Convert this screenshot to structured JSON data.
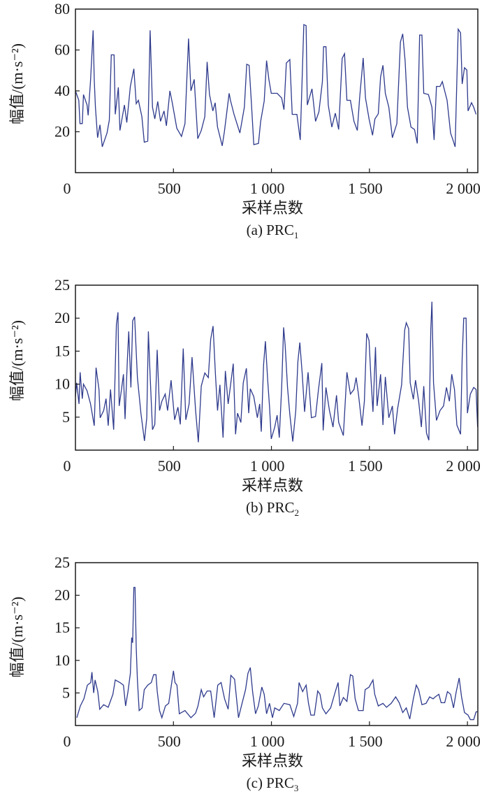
{
  "chart_data": [
    {
      "type": "line",
      "caption": "(a) PRC",
      "caption_sub": "1",
      "xlabel": "采样点数",
      "ylabel": "幅值/(m·s⁻²)",
      "xlim": [
        0,
        2053
      ],
      "ylim": [
        0,
        80
      ],
      "xticks": [
        0,
        500,
        1000,
        1500,
        2000
      ],
      "xtick_labels": [
        "0",
        "500",
        "1 000",
        "1 500",
        "2 000"
      ],
      "yticks": [
        20,
        40,
        60,
        80
      ],
      "ytick_labels": [
        "20",
        "40",
        "60",
        "80"
      ],
      "color": "#2e3a8c",
      "x": [
        0,
        17,
        23,
        35,
        41,
        59,
        65,
        77,
        90,
        96,
        102,
        113,
        125,
        137,
        161,
        173,
        183,
        197,
        203,
        219,
        227,
        250,
        262,
        280,
        298,
        310,
        321,
        339,
        351,
        369,
        381,
        393,
        405,
        420,
        434,
        452,
        464,
        482,
        494,
        517,
        541,
        559,
        577,
        589,
        606,
        624,
        642,
        660,
        672,
        684,
        701,
        713,
        725,
        749,
        760,
        784,
        791,
        809,
        839,
        862,
        874,
        886,
        898,
        910,
        934,
        945,
        963,
        975,
        987,
        999,
        1029,
        1052,
        1064,
        1076,
        1094,
        1106,
        1130,
        1147,
        1165,
        1177,
        1183,
        1207,
        1225,
        1242,
        1260,
        1266,
        1278,
        1290,
        1308,
        1326,
        1343,
        1361,
        1373,
        1385,
        1403,
        1421,
        1438,
        1450,
        1468,
        1480,
        1498,
        1516,
        1528,
        1545,
        1557,
        1569,
        1581,
        1599,
        1617,
        1640,
        1658,
        1670,
        1682,
        1694,
        1712,
        1730,
        1744,
        1756,
        1768,
        1777,
        1801,
        1819,
        1830,
        1842,
        1860,
        1872,
        1896,
        1914,
        1926,
        1937,
        1953,
        1965,
        1973,
        1985,
        1997,
        2003,
        2021,
        2032,
        2044
      ],
      "y": [
        40,
        35.4,
        24,
        24,
        38.2,
        33.1,
        28,
        45,
        69.6,
        45.6,
        32,
        17.1,
        23.4,
        12.6,
        19.4,
        25.7,
        57.6,
        57.6,
        28.5,
        41.7,
        20.6,
        33.1,
        24.5,
        42.2,
        50.8,
        33.7,
        35.4,
        27.4,
        14.9,
        15.4,
        69.6,
        32,
        26.3,
        34.8,
        25.1,
        30.2,
        22.9,
        40,
        34.2,
        21.7,
        17.7,
        24,
        65.6,
        40,
        45.6,
        16.6,
        20.6,
        27.4,
        54.2,
        38.2,
        30.2,
        34.2,
        22.3,
        13.1,
        20,
        38.8,
        35.4,
        28.5,
        19.4,
        32,
        53,
        52.5,
        34,
        13.7,
        14.3,
        25,
        35,
        54.8,
        45.6,
        38.8,
        38.8,
        36.5,
        30.8,
        53.6,
        55.3,
        28.5,
        28.5,
        16,
        72.4,
        71.9,
        33.1,
        41,
        25.1,
        29.7,
        44.5,
        61.6,
        61.6,
        33.1,
        22.3,
        29.1,
        21.1,
        55.9,
        58.2,
        35.4,
        35.4,
        25.1,
        20.6,
        36.5,
        56.1,
        36.5,
        26.3,
        18.3,
        26.3,
        28.8,
        46.8,
        52.5,
        38.8,
        32,
        17.1,
        24,
        63.9,
        67.9,
        54.8,
        32,
        22.3,
        21.1,
        14.3,
        67.3,
        67.3,
        38.8,
        38.2,
        32,
        16,
        42.2,
        42.2,
        44.5,
        35.4,
        19.4,
        16,
        12.6,
        70.2,
        68.4,
        43.4,
        51.3,
        50.2,
        30.2,
        34.2,
        32,
        28.5
      ]
    },
    {
      "type": "line",
      "caption": "(b) PRC",
      "caption_sub": "2",
      "xlabel": "采样点数",
      "ylabel": "幅值/(m·s⁻²)",
      "xlim": [
        0,
        2053
      ],
      "ylim": [
        0,
        25
      ],
      "xticks": [
        0,
        500,
        1000,
        1500,
        2000
      ],
      "xtick_labels": [
        "0",
        "500",
        "1 000",
        "1 500",
        "2 000"
      ],
      "yticks": [
        5,
        10,
        15,
        20,
        25
      ],
      "ytick_labels": [
        "5",
        "10",
        "15",
        "20",
        "25"
      ],
      "color": "#2e3a8c",
      "x": [
        0,
        6,
        18,
        24,
        35,
        41,
        59,
        77,
        96,
        105,
        120,
        126,
        144,
        156,
        167,
        179,
        195,
        209,
        217,
        223,
        235,
        245,
        253,
        265,
        272,
        283,
        292,
        302,
        316,
        334,
        352,
        364,
        372,
        381,
        393,
        405,
        417,
        429,
        441,
        458,
        470,
        488,
        506,
        523,
        535,
        550,
        563,
        580,
        595,
        613,
        627,
        642,
        660,
        678,
        690,
        702,
        714,
        725,
        737,
        753,
        765,
        779,
        805,
        817,
        827,
        844,
        856,
        872,
        884,
        892,
        910,
        928,
        940,
        948,
        960,
        969,
        981,
        991,
        999,
        1017,
        1029,
        1040,
        1052,
        1062,
        1070,
        1082,
        1094,
        1109,
        1124,
        1135,
        1145,
        1157,
        1169,
        1187,
        1204,
        1225,
        1240,
        1257,
        1264,
        1278,
        1296,
        1314,
        1332,
        1343,
        1367,
        1385,
        1403,
        1421,
        1432,
        1444,
        1462,
        1474,
        1486,
        1498,
        1507,
        1518,
        1531,
        1539,
        1557,
        1569,
        1581,
        1599,
        1617,
        1628,
        1644,
        1664,
        1680,
        1688,
        1700,
        1708,
        1724,
        1735,
        1751,
        1765,
        1777,
        1791,
        1803,
        1813,
        1819,
        1827,
        1842,
        1860,
        1878,
        1893,
        1908,
        1920,
        1934,
        1946,
        1965,
        1973,
        1981,
        1993,
        2000,
        2015,
        2032,
        2044,
        2052
      ],
      "y": [
        8.1,
        10.2,
        7,
        11.8,
        7.8,
        10,
        9,
        7,
        3.7,
        12.5,
        9.2,
        4.9,
        6,
        7.8,
        3.7,
        9.2,
        3.1,
        19,
        20.9,
        6.7,
        9.2,
        11.5,
        4.7,
        13.6,
        18,
        9.5,
        19.6,
        20.2,
        11,
        5.6,
        1.4,
        4.9,
        18,
        11.3,
        3.1,
        3.9,
        15.2,
        6,
        7.4,
        8.5,
        6,
        10.6,
        4.6,
        6.5,
        3.9,
        15.4,
        4.6,
        7,
        14.1,
        6,
        1.2,
        9.7,
        11.7,
        11,
        16.8,
        18.8,
        11.7,
        6,
        9.9,
        1.9,
        12,
        7,
        13.1,
        2.4,
        5.6,
        4.2,
        10.2,
        12.4,
        5.6,
        9.3,
        8.1,
        4.9,
        7,
        2.8,
        12.9,
        16.5,
        10.6,
        6.3,
        1.7,
        3.5,
        5.3,
        1.9,
        9.5,
        18.6,
        15.9,
        9.5,
        5.4,
        1.3,
        6,
        13.4,
        16.3,
        11.6,
        5.8,
        11.8,
        4.9,
        5.1,
        9.2,
        13.2,
        3,
        9.5,
        6,
        3.5,
        8.3,
        4.2,
        2.2,
        11.8,
        8.5,
        9.2,
        11,
        8.5,
        3.7,
        7.4,
        17.7,
        16.6,
        11.3,
        5.8,
        15.6,
        6.7,
        11.5,
        3.8,
        11.1,
        4.9,
        6.7,
        2.4,
        6.3,
        9.9,
        18.2,
        19.3,
        18.4,
        10.2,
        7.7,
        10.6,
        7.4,
        3.5,
        9.7,
        2.6,
        1.5,
        18.4,
        22.5,
        10.2,
        4.5,
        6,
        6.7,
        9.5,
        7.4,
        11.5,
        9.2,
        3.8,
        2.4,
        14,
        20,
        20,
        5.6,
        8.5,
        9.5,
        9.2,
        3.5
      ]
    },
    {
      "type": "line",
      "caption": "(c) PRC",
      "caption_sub": "3",
      "xlabel": "采样点数",
      "ylabel": "幅值/(m·s⁻²)",
      "xlim": [
        0,
        2053
      ],
      "ylim": [
        0,
        25
      ],
      "xticks": [
        0,
        500,
        1000,
        1500,
        2000
      ],
      "xtick_labels": [
        "0",
        "500",
        "1 000",
        "1 500",
        "2 000"
      ],
      "yticks": [
        5,
        10,
        15,
        20,
        25
      ],
      "ytick_labels": [
        "5",
        "10",
        "15",
        "20",
        "25"
      ],
      "color": "#2e3a8c",
      "x": [
        7,
        25,
        43,
        61,
        78,
        84,
        93,
        100,
        114,
        124,
        144,
        167,
        191,
        203,
        227,
        245,
        256,
        268,
        280,
        287,
        292,
        298,
        304,
        310,
        316,
        325,
        340,
        351,
        369,
        387,
        399,
        411,
        417,
        429,
        441,
        459,
        476,
        488,
        500,
        508,
        518,
        530,
        559,
        589,
        613,
        625,
        642,
        654,
        672,
        690,
        708,
        726,
        743,
        761,
        779,
        793,
        812,
        832,
        850,
        868,
        880,
        892,
        904,
        919,
        933,
        951,
        963,
        975,
        990,
        1005,
        1017,
        1040,
        1064,
        1094,
        1114,
        1133,
        1141,
        1159,
        1177,
        1189,
        1201,
        1219,
        1236,
        1248,
        1260,
        1278,
        1302,
        1326,
        1340,
        1349,
        1367,
        1385,
        1403,
        1415,
        1427,
        1444,
        1468,
        1478,
        1498,
        1518,
        1527,
        1545,
        1569,
        1587,
        1611,
        1634,
        1652,
        1670,
        1688,
        1706,
        1724,
        1739,
        1751,
        1768,
        1789,
        1807,
        1825,
        1836,
        1854,
        1866,
        1884,
        1898,
        1914,
        1929,
        1943,
        1958,
        1970,
        1985,
        2003,
        2015,
        2032,
        2044,
        2052
      ],
      "y": [
        1.2,
        3,
        4.1,
        6.2,
        6.6,
        8.2,
        5,
        7,
        5.2,
        2.5,
        3.2,
        2.8,
        4.8,
        7,
        6.6,
        6.2,
        3,
        5.2,
        8,
        13.5,
        12.7,
        21.2,
        21.2,
        12,
        7,
        2.3,
        2.7,
        5.5,
        6.2,
        6.6,
        7.8,
        7.8,
        5.3,
        2.3,
        1.2,
        3,
        3.4,
        5.9,
        8.4,
        6.6,
        6.2,
        1.8,
        2.3,
        1.2,
        1.9,
        3,
        5.5,
        4.4,
        5.3,
        5.3,
        1.2,
        6.2,
        6.6,
        4.1,
        2.5,
        7.7,
        7.1,
        1.2,
        3.4,
        5.5,
        8,
        8.9,
        5.2,
        1.8,
        3,
        5.9,
        4.8,
        1.8,
        3.4,
        1.2,
        2.7,
        2.3,
        3.4,
        3.2,
        1.4,
        3.4,
        6.6,
        5.2,
        6.2,
        3.4,
        1.6,
        1.6,
        5.3,
        4.8,
        2.7,
        1.8,
        2.7,
        5.2,
        6.6,
        3,
        4.3,
        3.7,
        7.8,
        7.6,
        4.1,
        2.3,
        2.3,
        5.5,
        5.9,
        7,
        4.8,
        3,
        3.4,
        2.8,
        3.4,
        4.4,
        3.5,
        2,
        2.7,
        1,
        4.1,
        6.2,
        5.5,
        3.2,
        3.4,
        4.4,
        4.1,
        4.4,
        4.8,
        3.5,
        3.5,
        5.2,
        4.8,
        2.7,
        5.2,
        7.3,
        4.4,
        2,
        1.6,
        0.9,
        0.9,
        2.1,
        2.1
      ]
    }
  ]
}
